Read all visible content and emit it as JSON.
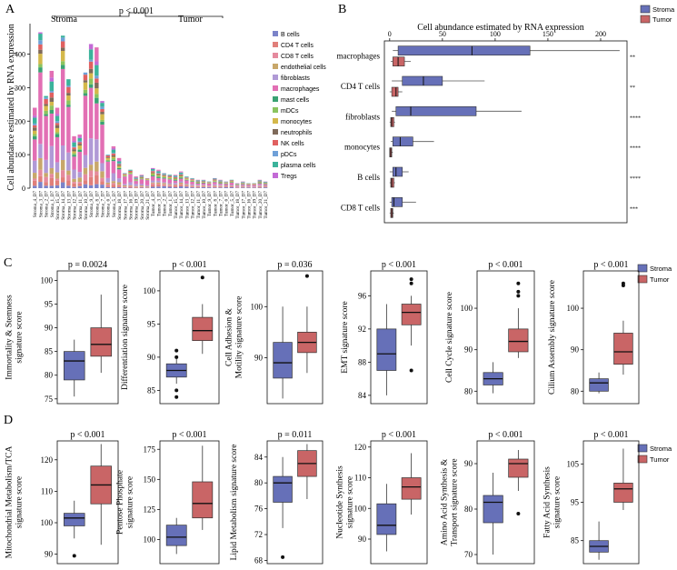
{
  "colors": {
    "stroma": "#6670b8",
    "tumor": "#c96566",
    "frame": "#333333"
  },
  "panels": {
    "A": {
      "letter": "A",
      "ylabel": "Cell abundance estimated by RNA expression",
      "group_left": "Stroma",
      "group_right": "Tumor",
      "pvalue": "p < 0.001"
    },
    "B": {
      "letter": "B",
      "title": "Cell abundance estimated by RNA expression"
    },
    "C": {
      "letter": "C"
    },
    "D": {
      "letter": "D"
    }
  },
  "legend_groups": [
    "Stroma",
    "Tumor"
  ],
  "chart_data": [
    {
      "id": "A",
      "type": "bar",
      "stacked": true,
      "title": "",
      "ylabel": "Cell abundance estimated by RNA expression",
      "ylim": [
        0,
        480
      ],
      "yticks": [
        0,
        100,
        200,
        300,
        400
      ],
      "categories": [
        "Stroma_4_D7",
        "Stroma_3_D7",
        "Stroma_2_D7",
        "Stroma_1_D7",
        "Stroma_15_D7",
        "Stroma_14_D7",
        "Stroma_13_D7",
        "Stroma_12_D7",
        "Stroma_11_D7",
        "Stroma_10_D7",
        "Stroma_9_D7",
        "Stroma_8_D7",
        "Stroma_7_D7",
        "Stroma_6_D7",
        "Stroma_5_D7",
        "Stroma_18_D7",
        "Stroma_17_D7",
        "Stroma_16_D7",
        "Stroma_19_D7",
        "Stroma_20_D7",
        "Stroma_21_D7",
        "Tumor_4_D7",
        "Tumor_3_D7",
        "Tumor_2_D7",
        "Tumor_1_D7",
        "Tumor_15_D7",
        "Tumor_14_D7",
        "Tumor_13_D7",
        "Tumor_12_D7",
        "Tumor_11_D7",
        "Tumor_10_D7",
        "Tumor_9_D7",
        "Tumor_8_D7",
        "Tumor_7_D7",
        "Tumor_6_D7",
        "Tumor_5_D7",
        "Tumor_18_D7",
        "Tumor_17_D7",
        "Tumor_16_D7",
        "Tumor_19_D7",
        "Tumor_20_D7",
        "Tumor_21_D7"
      ],
      "legend": [
        "B cells",
        "CD4 T cells",
        "CD8 T cells",
        "endothelial cells",
        "fibroblasts",
        "macrophages",
        "mast cells",
        "mDCs",
        "monocytes",
        "neutrophils",
        "NK cells",
        "pDCs",
        "plasma cells",
        "Tregs"
      ],
      "legend_colors": [
        "#7b83c9",
        "#e07f7a",
        "#e58a9e",
        "#c8a76a",
        "#b09ad6",
        "#e26fb4",
        "#3aa273",
        "#8bc45f",
        "#d4b84a",
        "#7f6a5a",
        "#e06060",
        "#6fa0d8",
        "#3bb39b",
        "#c36ad6"
      ],
      "totals": [
        240,
        465,
        275,
        350,
        240,
        455,
        325,
        155,
        160,
        345,
        430,
        420,
        260,
        100,
        125,
        90,
        45,
        55,
        35,
        40,
        30,
        60,
        55,
        45,
        40,
        40,
        50,
        35,
        30,
        25,
        25,
        20,
        30,
        25,
        20,
        25,
        15,
        20,
        15,
        15,
        25,
        20
      ]
    },
    {
      "id": "B",
      "type": "box",
      "orientation": "horizontal",
      "title": "Cell abundance estimated by RNA expression",
      "xlim": [
        -5,
        225
      ],
      "xticks": [
        0,
        50,
        100,
        150,
        200
      ],
      "categories": [
        "macrophages",
        "CD4 T cells",
        "fibroblasts",
        "monocytes",
        "B cells",
        "CD8 T cells"
      ],
      "significance": [
        "**",
        "**",
        "****",
        "****",
        "****",
        "***"
      ],
      "series": [
        {
          "name": "Stroma",
          "boxes": [
            [
              3,
              8,
              78,
              133,
              218
            ],
            [
              2,
              12,
              32,
              50,
              90
            ],
            [
              2,
              6,
              20,
              82,
              125
            ],
            [
              1,
              3,
              10,
              22,
              42
            ],
            [
              0,
              3,
              6,
              12,
              18
            ],
            [
              0,
              2,
              4,
              12,
              25
            ]
          ]
        },
        {
          "name": "Tumor",
          "boxes": [
            [
              1,
              3,
              8,
              14,
              20
            ],
            [
              0,
              2,
              6,
              8,
              12
            ],
            [
              0,
              1,
              2,
              4,
              5
            ],
            [
              0,
              0,
              1,
              2,
              3
            ],
            [
              0,
              1,
              2,
              4,
              5
            ],
            [
              0,
              1,
              2,
              3,
              4
            ]
          ]
        }
      ]
    },
    {
      "id": "C1",
      "type": "box",
      "ylabel": "Immortality & Stemness signature score",
      "pvalue": "p = 0.0024",
      "ylim": [
        74,
        102
      ],
      "yticks": [
        75,
        80,
        85,
        90,
        95,
        100
      ],
      "series": [
        {
          "name": "Stroma",
          "box": [
            75.5,
            79,
            83,
            85,
            87.5
          ]
        },
        {
          "name": "Tumor",
          "box": [
            80.5,
            84,
            86.5,
            90,
            97
          ]
        }
      ],
      "outliers": []
    },
    {
      "id": "C2",
      "type": "box",
      "ylabel": "Differentiation signature score",
      "pvalue": "p < 0.001",
      "ylim": [
        83,
        103
      ],
      "yticks": [
        85,
        90,
        95,
        100
      ],
      "series": [
        {
          "name": "Stroma",
          "box": [
            86,
            87,
            88,
            89,
            90
          ]
        },
        {
          "name": "Tumor",
          "box": [
            90.5,
            92.5,
            94,
            96,
            98
          ]
        }
      ],
      "outliers": [
        [
          0,
          91
        ],
        [
          0,
          90
        ],
        [
          0,
          85
        ],
        [
          0,
          84
        ],
        [
          1,
          102
        ]
      ]
    },
    {
      "id": "C3",
      "type": "box",
      "ylabel": "Cell Adhesion & Motility signature score",
      "pvalue": "p = 0.036",
      "ylim": [
        81,
        107
      ],
      "yticks": [
        90,
        100
      ],
      "series": [
        {
          "name": "Stroma",
          "box": [
            82,
            86,
            89,
            93,
            100
          ]
        },
        {
          "name": "Tumor",
          "box": [
            87,
            91,
            93,
            95,
            100
          ]
        }
      ],
      "outliers": [
        [
          1,
          106
        ]
      ]
    },
    {
      "id": "C4",
      "type": "box",
      "ylabel": "EMT signature score",
      "pvalue": "p < 0.001",
      "ylim": [
        83,
        99
      ],
      "yticks": [
        84,
        88,
        92,
        96
      ],
      "series": [
        {
          "name": "Stroma",
          "box": [
            84,
            87,
            89,
            92,
            95
          ]
        },
        {
          "name": "Tumor",
          "box": [
            90,
            92.5,
            94,
            95,
            96
          ]
        }
      ],
      "outliers": [
        [
          1,
          98
        ],
        [
          1,
          97.5
        ],
        [
          1,
          87
        ]
      ]
    },
    {
      "id": "C5",
      "type": "box",
      "ylabel": "Cell Cycle signature score",
      "pvalue": "p < 0.001",
      "ylim": [
        77,
        109
      ],
      "yticks": [
        80,
        90,
        100
      ],
      "series": [
        {
          "name": "Stroma",
          "box": [
            79.5,
            81.5,
            83,
            84.5,
            87
          ]
        },
        {
          "name": "Tumor",
          "box": [
            88,
            89.5,
            92,
            95,
            100
          ]
        }
      ],
      "outliers": [
        [
          1,
          106
        ],
        [
          1,
          104
        ],
        [
          1,
          103
        ]
      ]
    },
    {
      "id": "C6",
      "type": "box",
      "ylabel": "Cilium Assembly signature score",
      "pvalue": "p < 0.001",
      "ylim": [
        77,
        109
      ],
      "yticks": [
        80,
        90,
        100
      ],
      "series": [
        {
          "name": "Stroma",
          "box": [
            79.5,
            80,
            82,
            83,
            84.5
          ]
        },
        {
          "name": "Tumor",
          "box": [
            84,
            86.5,
            89.5,
            94,
            97
          ]
        }
      ],
      "outliers": [
        [
          1,
          106
        ],
        [
          1,
          105.5
        ]
      ]
    },
    {
      "id": "D1",
      "type": "box",
      "ylabel": "Mitochondrial Metabolism/TCA signature score",
      "pvalue": "p < 0.001",
      "ylim": [
        87,
        126
      ],
      "yticks": [
        90,
        100,
        110,
        120
      ],
      "series": [
        {
          "name": "Stroma",
          "box": [
            95,
            99,
            101.5,
            103,
            107
          ]
        },
        {
          "name": "Tumor",
          "box": [
            93,
            106,
            112,
            118,
            125
          ]
        }
      ],
      "outliers": [
        [
          0,
          89.5
        ]
      ]
    },
    {
      "id": "D2",
      "type": "box",
      "ylabel": "Pentose Phosphate signature score",
      "pvalue": "p < 0.001",
      "ylim": [
        80,
        182
      ],
      "yticks": [
        100,
        125,
        150,
        175
      ],
      "series": [
        {
          "name": "Stroma",
          "box": [
            88,
            95,
            102,
            112,
            118
          ]
        },
        {
          "name": "Tumor",
          "box": [
            108,
            118,
            130,
            148,
            178
          ]
        }
      ],
      "outliers": []
    },
    {
      "id": "D3",
      "type": "box",
      "ylabel": "Lipid Metabolism signature score",
      "pvalue": "p = 0.011",
      "ylim": [
        67.5,
        86.5
      ],
      "yticks": [
        68,
        72,
        76,
        80,
        84
      ],
      "series": [
        {
          "name": "Stroma",
          "box": [
            73,
            77,
            80,
            81,
            84
          ]
        },
        {
          "name": "Tumor",
          "box": [
            77.5,
            81,
            83,
            85,
            86
          ]
        }
      ],
      "outliers": [
        [
          0,
          68.5
        ]
      ]
    },
    {
      "id": "D4",
      "type": "box",
      "ylabel": "Nucleotide Synthesis signature score",
      "pvalue": "p < 0.001",
      "ylim": [
        82,
        122
      ],
      "yticks": [
        90,
        100,
        110,
        120
      ],
      "series": [
        {
          "name": "Stroma",
          "box": [
            86,
            91.5,
            94.5,
            101.5,
            108
          ]
        },
        {
          "name": "Tumor",
          "box": [
            98,
            103,
            107,
            110,
            118
          ]
        }
      ],
      "outliers": []
    },
    {
      "id": "D5",
      "type": "box",
      "ylabel": "Amino Acid Synthesis & Transport signature score",
      "pvalue": "p < 0.001",
      "ylim": [
        68,
        95
      ],
      "yticks": [
        70,
        80,
        90
      ],
      "series": [
        {
          "name": "Stroma",
          "box": [
            70,
            77,
            81.5,
            83,
            88
          ]
        },
        {
          "name": "Tumor",
          "box": [
            84,
            87,
            90,
            91,
            93
          ]
        }
      ],
      "outliers": [
        [
          1,
          79
        ]
      ]
    },
    {
      "id": "D6",
      "type": "box",
      "ylabel": "Fatty Acid Synthesis signature score",
      "pvalue": "p < 0.001",
      "ylim": [
        79,
        111
      ],
      "yticks": [
        85,
        95,
        105
      ],
      "series": [
        {
          "name": "Stroma",
          "box": [
            80,
            82,
            83.5,
            85,
            90
          ]
        },
        {
          "name": "Tumor",
          "box": [
            93,
            95,
            98.5,
            100,
            109
          ]
        }
      ],
      "outliers": []
    }
  ]
}
